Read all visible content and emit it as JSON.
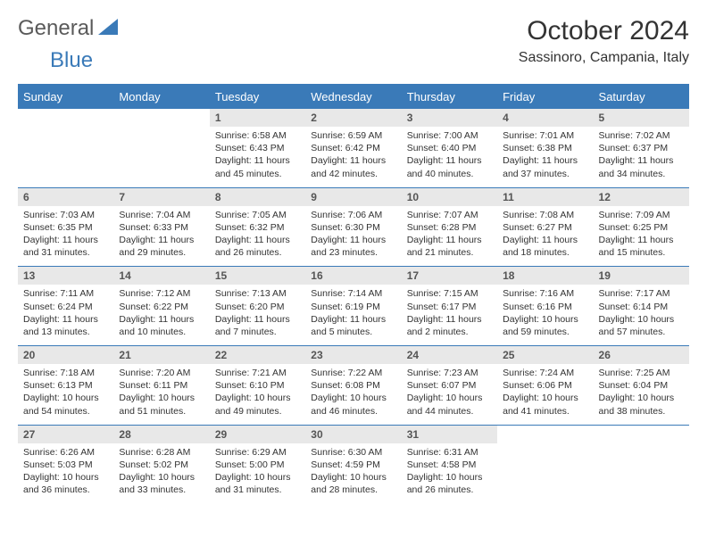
{
  "logo": {
    "general": "General",
    "blue": "Blue"
  },
  "title": "October 2024",
  "location": "Sassinoro, Campania, Italy",
  "colors": {
    "header_bg": "#3a7ab8",
    "header_text": "#ffffff",
    "daynum_bg": "#e8e8e8",
    "border": "#3a7ab8",
    "text": "#333333",
    "logo_gray": "#5a5a5a",
    "logo_blue": "#3a7ab8"
  },
  "day_headers": [
    "Sunday",
    "Monday",
    "Tuesday",
    "Wednesday",
    "Thursday",
    "Friday",
    "Saturday"
  ],
  "weeks": [
    [
      {
        "n": "",
        "s": "",
        "ss": "",
        "d": ""
      },
      {
        "n": "",
        "s": "",
        "ss": "",
        "d": ""
      },
      {
        "n": "1",
        "s": "Sunrise: 6:58 AM",
        "ss": "Sunset: 6:43 PM",
        "d": "Daylight: 11 hours and 45 minutes."
      },
      {
        "n": "2",
        "s": "Sunrise: 6:59 AM",
        "ss": "Sunset: 6:42 PM",
        "d": "Daylight: 11 hours and 42 minutes."
      },
      {
        "n": "3",
        "s": "Sunrise: 7:00 AM",
        "ss": "Sunset: 6:40 PM",
        "d": "Daylight: 11 hours and 40 minutes."
      },
      {
        "n": "4",
        "s": "Sunrise: 7:01 AM",
        "ss": "Sunset: 6:38 PM",
        "d": "Daylight: 11 hours and 37 minutes."
      },
      {
        "n": "5",
        "s": "Sunrise: 7:02 AM",
        "ss": "Sunset: 6:37 PM",
        "d": "Daylight: 11 hours and 34 minutes."
      }
    ],
    [
      {
        "n": "6",
        "s": "Sunrise: 7:03 AM",
        "ss": "Sunset: 6:35 PM",
        "d": "Daylight: 11 hours and 31 minutes."
      },
      {
        "n": "7",
        "s": "Sunrise: 7:04 AM",
        "ss": "Sunset: 6:33 PM",
        "d": "Daylight: 11 hours and 29 minutes."
      },
      {
        "n": "8",
        "s": "Sunrise: 7:05 AM",
        "ss": "Sunset: 6:32 PM",
        "d": "Daylight: 11 hours and 26 minutes."
      },
      {
        "n": "9",
        "s": "Sunrise: 7:06 AM",
        "ss": "Sunset: 6:30 PM",
        "d": "Daylight: 11 hours and 23 minutes."
      },
      {
        "n": "10",
        "s": "Sunrise: 7:07 AM",
        "ss": "Sunset: 6:28 PM",
        "d": "Daylight: 11 hours and 21 minutes."
      },
      {
        "n": "11",
        "s": "Sunrise: 7:08 AM",
        "ss": "Sunset: 6:27 PM",
        "d": "Daylight: 11 hours and 18 minutes."
      },
      {
        "n": "12",
        "s": "Sunrise: 7:09 AM",
        "ss": "Sunset: 6:25 PM",
        "d": "Daylight: 11 hours and 15 minutes."
      }
    ],
    [
      {
        "n": "13",
        "s": "Sunrise: 7:11 AM",
        "ss": "Sunset: 6:24 PM",
        "d": "Daylight: 11 hours and 13 minutes."
      },
      {
        "n": "14",
        "s": "Sunrise: 7:12 AM",
        "ss": "Sunset: 6:22 PM",
        "d": "Daylight: 11 hours and 10 minutes."
      },
      {
        "n": "15",
        "s": "Sunrise: 7:13 AM",
        "ss": "Sunset: 6:20 PM",
        "d": "Daylight: 11 hours and 7 minutes."
      },
      {
        "n": "16",
        "s": "Sunrise: 7:14 AM",
        "ss": "Sunset: 6:19 PM",
        "d": "Daylight: 11 hours and 5 minutes."
      },
      {
        "n": "17",
        "s": "Sunrise: 7:15 AM",
        "ss": "Sunset: 6:17 PM",
        "d": "Daylight: 11 hours and 2 minutes."
      },
      {
        "n": "18",
        "s": "Sunrise: 7:16 AM",
        "ss": "Sunset: 6:16 PM",
        "d": "Daylight: 10 hours and 59 minutes."
      },
      {
        "n": "19",
        "s": "Sunrise: 7:17 AM",
        "ss": "Sunset: 6:14 PM",
        "d": "Daylight: 10 hours and 57 minutes."
      }
    ],
    [
      {
        "n": "20",
        "s": "Sunrise: 7:18 AM",
        "ss": "Sunset: 6:13 PM",
        "d": "Daylight: 10 hours and 54 minutes."
      },
      {
        "n": "21",
        "s": "Sunrise: 7:20 AM",
        "ss": "Sunset: 6:11 PM",
        "d": "Daylight: 10 hours and 51 minutes."
      },
      {
        "n": "22",
        "s": "Sunrise: 7:21 AM",
        "ss": "Sunset: 6:10 PM",
        "d": "Daylight: 10 hours and 49 minutes."
      },
      {
        "n": "23",
        "s": "Sunrise: 7:22 AM",
        "ss": "Sunset: 6:08 PM",
        "d": "Daylight: 10 hours and 46 minutes."
      },
      {
        "n": "24",
        "s": "Sunrise: 7:23 AM",
        "ss": "Sunset: 6:07 PM",
        "d": "Daylight: 10 hours and 44 minutes."
      },
      {
        "n": "25",
        "s": "Sunrise: 7:24 AM",
        "ss": "Sunset: 6:06 PM",
        "d": "Daylight: 10 hours and 41 minutes."
      },
      {
        "n": "26",
        "s": "Sunrise: 7:25 AM",
        "ss": "Sunset: 6:04 PM",
        "d": "Daylight: 10 hours and 38 minutes."
      }
    ],
    [
      {
        "n": "27",
        "s": "Sunrise: 6:26 AM",
        "ss": "Sunset: 5:03 PM",
        "d": "Daylight: 10 hours and 36 minutes."
      },
      {
        "n": "28",
        "s": "Sunrise: 6:28 AM",
        "ss": "Sunset: 5:02 PM",
        "d": "Daylight: 10 hours and 33 minutes."
      },
      {
        "n": "29",
        "s": "Sunrise: 6:29 AM",
        "ss": "Sunset: 5:00 PM",
        "d": "Daylight: 10 hours and 31 minutes."
      },
      {
        "n": "30",
        "s": "Sunrise: 6:30 AM",
        "ss": "Sunset: 4:59 PM",
        "d": "Daylight: 10 hours and 28 minutes."
      },
      {
        "n": "31",
        "s": "Sunrise: 6:31 AM",
        "ss": "Sunset: 4:58 PM",
        "d": "Daylight: 10 hours and 26 minutes."
      },
      {
        "n": "",
        "s": "",
        "ss": "",
        "d": ""
      },
      {
        "n": "",
        "s": "",
        "ss": "",
        "d": ""
      }
    ]
  ]
}
